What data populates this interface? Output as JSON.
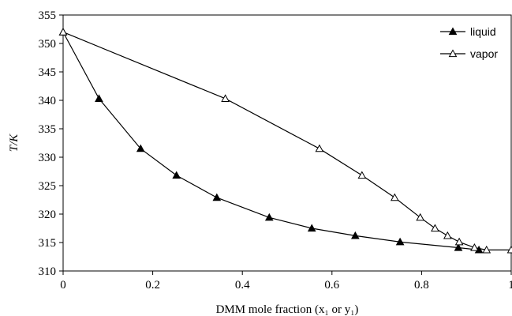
{
  "chart_data": {
    "type": "line",
    "xlabel": "DMM mole fraction (x₁ or y₁)",
    "ylabel": "T/K",
    "xlim": [
      0,
      1
    ],
    "ylim": [
      310,
      355
    ],
    "x_ticks": [
      "0",
      "0.2",
      "0.4",
      "0.6",
      "0.8",
      "1"
    ],
    "x_tick_values": [
      0,
      0.2,
      0.4,
      0.6,
      0.8,
      1
    ],
    "y_ticks": [
      "310",
      "315",
      "320",
      "325",
      "330",
      "335",
      "340",
      "345",
      "350",
      "355"
    ],
    "y_tick_values": [
      310,
      315,
      320,
      325,
      330,
      335,
      340,
      345,
      350,
      355
    ],
    "grid": false,
    "legend_position": "top-right",
    "series": [
      {
        "name": "liquid",
        "marker": "filled-triangle",
        "color": "#000000",
        "x": [
          0.0,
          0.08,
          0.173,
          0.253,
          0.343,
          0.46,
          0.555,
          0.652,
          0.752,
          0.882,
          0.928
        ],
        "y": [
          352.0,
          340.3,
          331.5,
          326.8,
          322.9,
          319.4,
          317.5,
          316.2,
          315.1,
          314.1,
          313.7
        ]
      },
      {
        "name": "vapor",
        "marker": "open-triangle",
        "color": "#000000",
        "x": [
          0.0,
          0.362,
          0.572,
          0.667,
          0.74,
          0.797,
          0.83,
          0.858,
          0.884,
          0.918,
          0.945,
          1.0
        ],
        "y": [
          352.0,
          340.3,
          331.5,
          326.8,
          322.9,
          319.4,
          317.5,
          316.2,
          315.1,
          314.1,
          313.7,
          313.7
        ]
      }
    ]
  }
}
